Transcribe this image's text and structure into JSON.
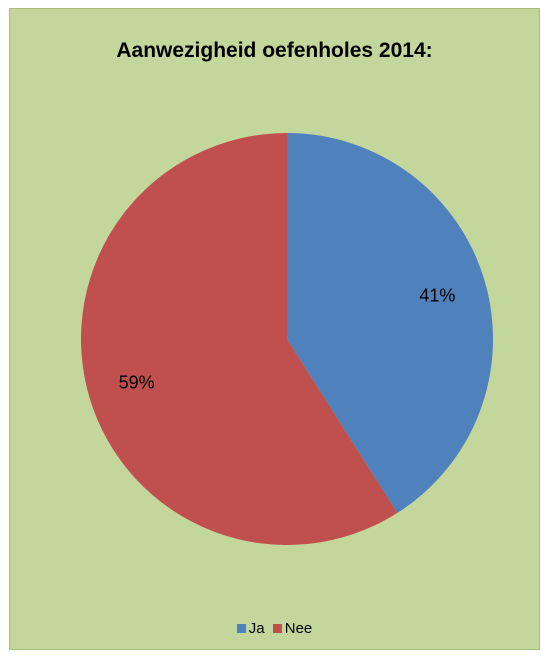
{
  "chart_data": {
    "type": "pie",
    "title": "Aanwezigheid oefenholes 2014:",
    "categories": [
      "Ja",
      "Nee"
    ],
    "values": [
      41,
      59
    ],
    "data_labels": [
      "41%",
      "59%"
    ],
    "colors": [
      "#4f81bd",
      "#c0504d"
    ],
    "background": "#c3d69b",
    "legend": "bottom",
    "start_angle_deg": 0,
    "direction": "clockwise"
  }
}
